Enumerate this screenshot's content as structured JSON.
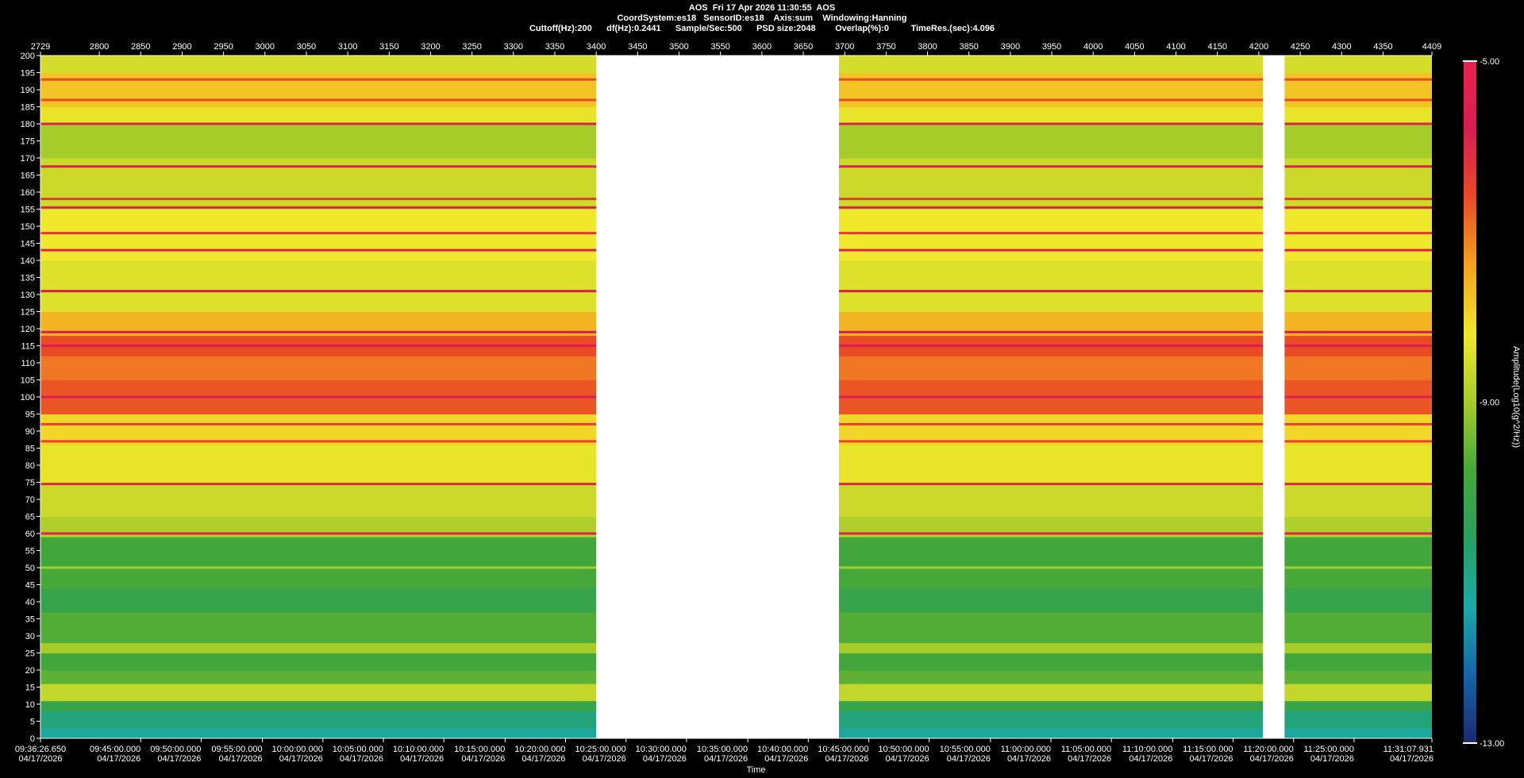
{
  "header": {
    "line1": "AOS  Fri 17 Apr 2026 11:30:55  AOS",
    "line2": "CoordSystem:es18   SensorID:es18    Axis:sum    Windowing:Hanning",
    "line3": "Cuttoff(Hz):200      df(Hz):0.2441      Sample/Sec:500      PSD size:2048        Overlap(%):0         TimeRes.(sec):4.096"
  },
  "chart_data": {
    "type": "heatmap",
    "xlabel": "Time",
    "colorbar_label": "Amplitude(Log10(g^2/Hz))",
    "ylim": [
      0,
      200
    ],
    "y_ticks": [
      0,
      5,
      10,
      15,
      20,
      25,
      30,
      35,
      40,
      45,
      50,
      55,
      60,
      65,
      70,
      75,
      80,
      85,
      90,
      95,
      100,
      105,
      110,
      115,
      120,
      125,
      130,
      135,
      140,
      145,
      150,
      155,
      160,
      165,
      170,
      175,
      180,
      185,
      190,
      195,
      200
    ],
    "top_axis_range": [
      2729,
      4409
    ],
    "top_axis_ticks": [
      "2729",
      "2800",
      "2850",
      "2900",
      "2950",
      "3000",
      "3050",
      "3100",
      "3150",
      "3200",
      "3250",
      "3300",
      "3350",
      "3400",
      "3450",
      "3500",
      "3550",
      "3600",
      "3650",
      "3700",
      "3750",
      "3800",
      "3850",
      "3900",
      "3950",
      "4000",
      "4050",
      "4100",
      "4150",
      "4200",
      "4250",
      "4300",
      "4350",
      "4409"
    ],
    "bottom_axis_ticks": [
      {
        "index": 2729,
        "time": "09:36:26.650",
        "date": "04/17/2026"
      },
      {
        "index": 2850,
        "time": "09:45:00.000",
        "date": "04/17/2026"
      },
      {
        "index": 2923,
        "time": "09:50:00.000",
        "date": "04/17/2026"
      },
      {
        "index": 2997,
        "time": "09:55:00.000",
        "date": "04/17/2026"
      },
      {
        "index": 3070,
        "time": "10:00:00.000",
        "date": "04/17/2026"
      },
      {
        "index": 3143,
        "time": "10:05:00.000",
        "date": "04/17/2026"
      },
      {
        "index": 3216,
        "time": "10:10:00.000",
        "date": "04/17/2026"
      },
      {
        "index": 3290,
        "time": "10:15:00.000",
        "date": "04/17/2026"
      },
      {
        "index": 3363,
        "time": "10:20:00.000",
        "date": "04/17/2026"
      },
      {
        "index": 3436,
        "time": "10:25:00.000",
        "date": "04/17/2026"
      },
      {
        "index": 3509,
        "time": "10:30:00.000",
        "date": "04/17/2026"
      },
      {
        "index": 3583,
        "time": "10:35:00.000",
        "date": "04/17/2026"
      },
      {
        "index": 3656,
        "time": "10:40:00.000",
        "date": "04/17/2026"
      },
      {
        "index": 3729,
        "time": "10:45:00.000",
        "date": "04/17/2026"
      },
      {
        "index": 3802,
        "time": "10:50:00.000",
        "date": "04/17/2026"
      },
      {
        "index": 3876,
        "time": "10:55:00.000",
        "date": "04/17/2026"
      },
      {
        "index": 3949,
        "time": "11:00:00.000",
        "date": "04/17/2026"
      },
      {
        "index": 4022,
        "time": "11:05:00.000",
        "date": "04/17/2026"
      },
      {
        "index": 4096,
        "time": "11:10:00.000",
        "date": "04/17/2026"
      },
      {
        "index": 4169,
        "time": "11:15:00.000",
        "date": "04/17/2026"
      },
      {
        "index": 4242,
        "time": "11:20:00.000",
        "date": "04/17/2026"
      },
      {
        "index": 4315,
        "time": "11:25:00.000",
        "date": "04/17/2026"
      },
      {
        "index": 4409,
        "time": "11:31:07.931",
        "date": "04/17/2026"
      }
    ],
    "data_segments": [
      [
        2729,
        3400
      ],
      [
        3693,
        4205
      ],
      [
        4231,
        4409
      ]
    ],
    "gaps": [
      [
        3400,
        3693
      ],
      [
        4205,
        4231
      ]
    ],
    "colorbar": {
      "min": -13.0,
      "max": -5.0,
      "min_label": "-13.00",
      "mid_label": "-9.00",
      "max_label": "-5.00",
      "stops": [
        "#1d2a6e",
        "#1565a8",
        "#1aa9a6",
        "#28a060",
        "#45a838",
        "#a6cc2a",
        "#f0e82a",
        "#f4a21e",
        "#ea4a26",
        "#d81d52",
        "#e8234f"
      ]
    },
    "frequency_bands_hz": [
      {
        "from": 0,
        "to": 3,
        "level": -11.3
      },
      {
        "from": 3,
        "to": 8,
        "level": -10.9
      },
      {
        "from": 8,
        "to": 11,
        "level": -10.2
      },
      {
        "from": 11,
        "to": 16,
        "level": -8.7
      },
      {
        "from": 16,
        "to": 20,
        "level": -9.6
      },
      {
        "from": 20,
        "to": 25,
        "level": -9.9
      },
      {
        "from": 25,
        "to": 28,
        "level": -9.0
      },
      {
        "from": 28,
        "to": 37,
        "level": -9.7
      },
      {
        "from": 37,
        "to": 44,
        "level": -10.2
      },
      {
        "from": 44,
        "to": 50,
        "level": -9.8
      },
      {
        "from": 50,
        "to": 59,
        "level": -9.9
      },
      {
        "from": 59,
        "to": 65,
        "level": -8.9
      },
      {
        "from": 65,
        "to": 75,
        "level": -8.6
      },
      {
        "from": 75,
        "to": 86,
        "level": -8.3
      },
      {
        "from": 86,
        "to": 95,
        "level": -8.0
      },
      {
        "from": 95,
        "to": 105,
        "level": -6.7
      },
      {
        "from": 105,
        "to": 112,
        "level": -7.0
      },
      {
        "from": 112,
        "to": 118,
        "level": -6.6
      },
      {
        "from": 118,
        "to": 125,
        "level": -7.6
      },
      {
        "from": 125,
        "to": 140,
        "level": -8.4
      },
      {
        "from": 140,
        "to": 155,
        "level": -8.2
      },
      {
        "from": 155,
        "to": 170,
        "level": -8.6
      },
      {
        "from": 170,
        "to": 180,
        "level": -9.0
      },
      {
        "from": 180,
        "to": 185,
        "level": -8.3
      },
      {
        "from": 185,
        "to": 195,
        "level": -7.8
      },
      {
        "from": 195,
        "to": 200,
        "level": -8.5
      }
    ],
    "spectral_lines_hz": [
      {
        "f": 60,
        "level": -5.3
      },
      {
        "f": 50,
        "level": -9.0
      },
      {
        "f": 74.5,
        "level": -6.0
      },
      {
        "f": 87,
        "level": -6.5
      },
      {
        "f": 92,
        "level": -6.4
      },
      {
        "f": 100,
        "level": -5.6
      },
      {
        "f": 115,
        "level": -5.7
      },
      {
        "f": 119,
        "level": -5.8
      },
      {
        "f": 131,
        "level": -5.8
      },
      {
        "f": 143,
        "level": -5.5
      },
      {
        "f": 148,
        "level": -6.3
      },
      {
        "f": 155.5,
        "level": -5.5
      },
      {
        "f": 158,
        "level": -6.3
      },
      {
        "f": 167.5,
        "level": -5.6
      },
      {
        "f": 180,
        "level": -5.9
      },
      {
        "f": 187,
        "level": -6.6
      },
      {
        "f": 193,
        "level": -6.6
      }
    ]
  }
}
